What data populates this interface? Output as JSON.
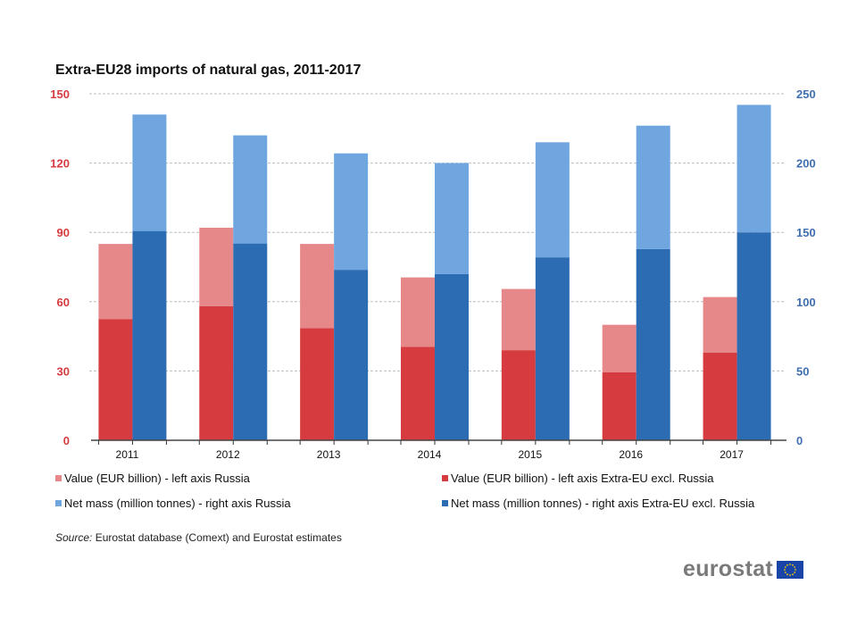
{
  "chart_data": {
    "type": "bar",
    "subtype": "stacked-grouped-dual-axis",
    "title": "Extra-EU28 imports of natural gas, 2011-2017",
    "categories": [
      "2011",
      "2012",
      "2013",
      "2014",
      "2015",
      "2016",
      "2017"
    ],
    "left_axis": {
      "label": "Value (EUR billion)",
      "ylim": [
        0,
        150
      ],
      "ticks": [
        0,
        30,
        60,
        90,
        120,
        150
      ],
      "color": "#d63b3f"
    },
    "right_axis": {
      "label": "Net mass (million tonnes)",
      "ylim": [
        0,
        250
      ],
      "ticks": [
        0,
        50,
        100,
        150,
        200,
        250
      ],
      "color": "#3f6fb0"
    },
    "grid": true,
    "groups": [
      {
        "axis": "left",
        "stack": [
          {
            "name": "Value (EUR billion) - left axis Extra-EU excl. Russia",
            "color": "#d63b3f",
            "values": [
              52.5,
              58,
              48.5,
              40.5,
              39,
              29.5,
              38
            ]
          },
          {
            "name": "Value (EUR billion) - left axis Russia",
            "color": "#e6878a",
            "values": [
              32.5,
              34,
              36.5,
              30,
              26.5,
              20.5,
              24
            ]
          }
        ]
      },
      {
        "axis": "right",
        "stack": [
          {
            "name": "Net mass (million tonnes) - right axis Extra-EU excl. Russia",
            "color": "#2b6cb3",
            "values": [
              151,
              142,
              123,
              120,
              132,
              138,
              150
            ]
          },
          {
            "name": "Net mass (million tonnes) - right axis Russia",
            "color": "#6fa6df",
            "values": [
              84,
              78,
              84,
              80,
              83,
              89,
              92
            ]
          }
        ]
      }
    ],
    "legend_position": "bottom"
  },
  "legend": [
    {
      "label": "Value (EUR billion) - left axis Russia",
      "color": "#e6878a"
    },
    {
      "label": "Value (EUR billion) - left axis Extra-EU excl. Russia",
      "color": "#d63b3f"
    },
    {
      "label": "Net mass (million tonnes) - right axis Russia",
      "color": "#6fa6df"
    },
    {
      "label": "Net mass (million tonnes) - right axis Extra-EU excl. Russia",
      "color": "#2b6cb3"
    }
  ],
  "source": {
    "label": "Source:",
    "text": "Eurostat database (Comext) and Eurostat estimates"
  },
  "logo": {
    "text": "eurostat",
    "flag_icon": "eu-flag-icon"
  }
}
